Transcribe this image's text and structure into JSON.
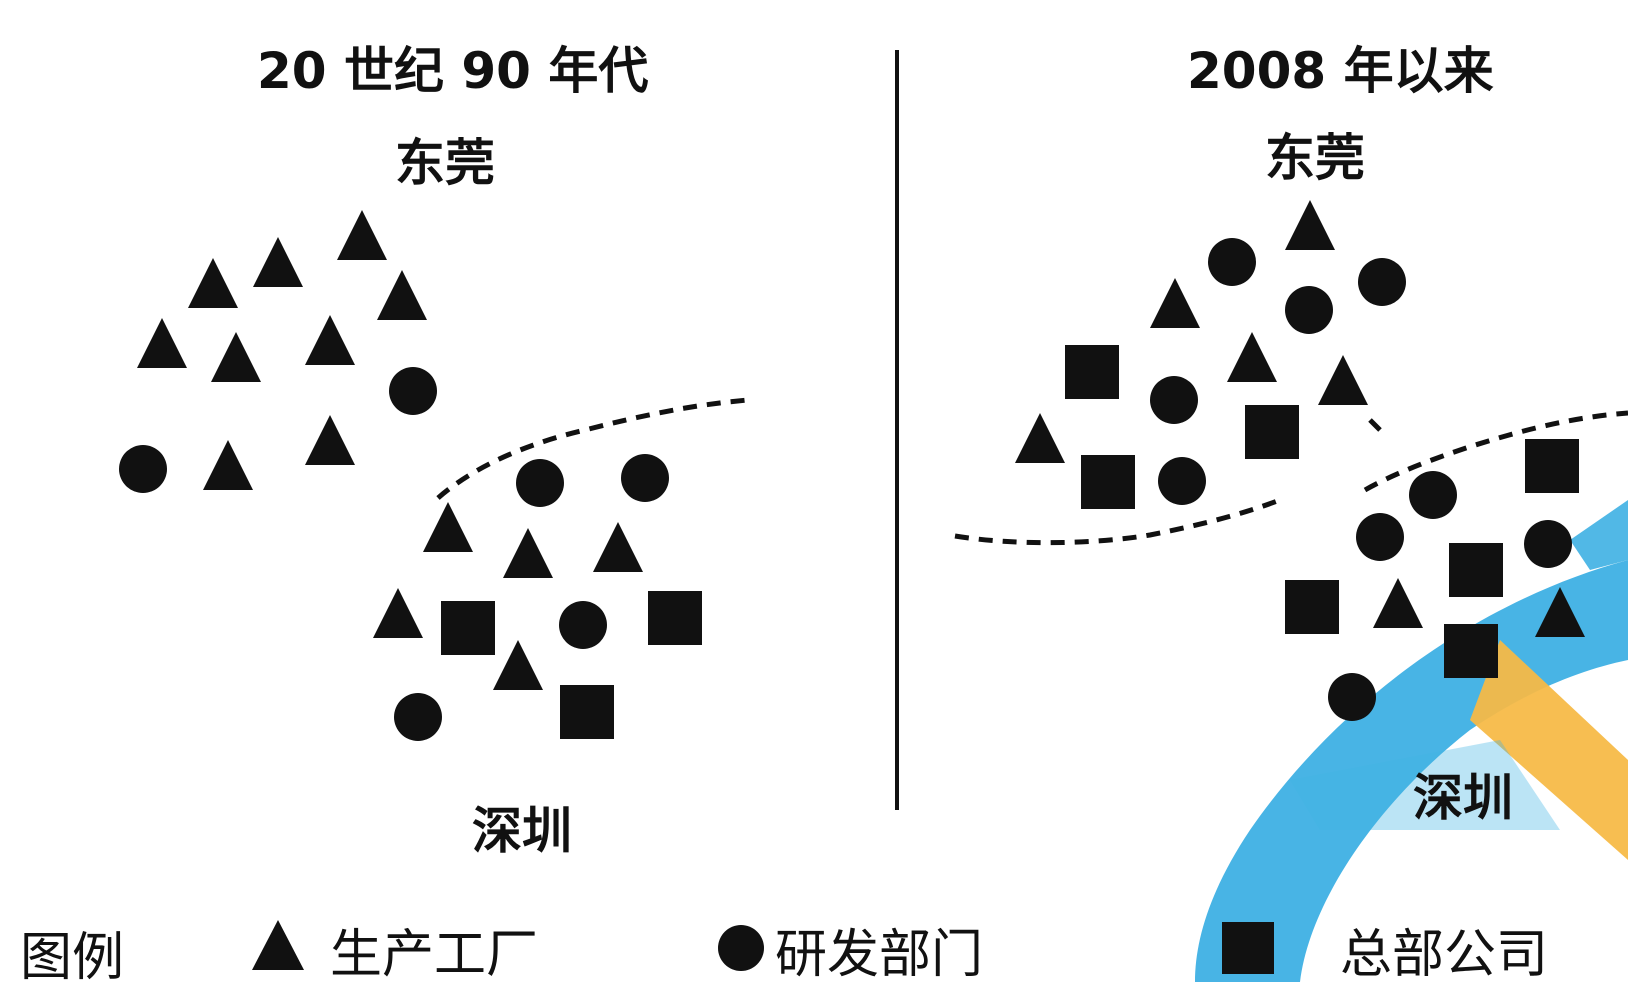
{
  "panels": [
    {
      "title": "20 世纪 90 年代",
      "top_city": "东莞",
      "bottom_city": "深圳"
    },
    {
      "title": "2008 年以来",
      "top_city": "东莞",
      "bottom_city": "深圳"
    }
  ],
  "legend": {
    "title": "图例",
    "items": [
      {
        "symbol": "triangle",
        "label": "生产工厂"
      },
      {
        "symbol": "circle",
        "label": "研发部门"
      },
      {
        "symbol": "square",
        "label": "总部公司"
      }
    ]
  },
  "colors": {
    "symbol": "#111111",
    "watermark_blue": "#29a8e0",
    "watermark_orange": "#f5b335"
  }
}
